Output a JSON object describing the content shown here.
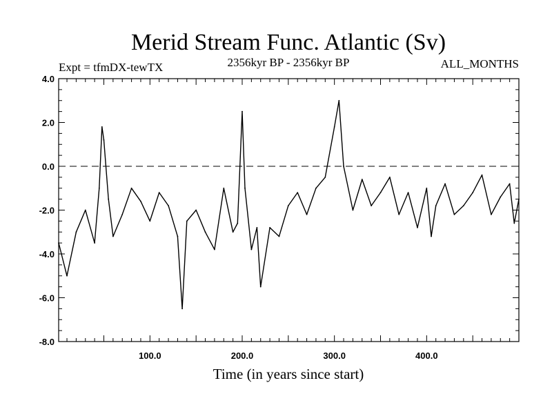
{
  "chart_data": {
    "type": "line",
    "title": "Merid Stream Func. Atlantic (Sv)",
    "subtitle_left": "Expt = tfmDX-tewTX",
    "subtitle_center": "2356kyr BP - 2356kyr BP",
    "subtitle_right": "ALL_MONTHS",
    "xlabel": "Time (in years since start)",
    "ylabel": "",
    "xlim": [
      1,
      500
    ],
    "ylim": [
      -8,
      4
    ],
    "x_ticks": [
      100,
      200,
      300,
      400
    ],
    "x_tick_labels": [
      "100.0",
      "200.0",
      "300.0",
      "400.0"
    ],
    "y_ticks": [
      -8,
      -6,
      -4,
      -2,
      0,
      2,
      4
    ],
    "y_tick_labels": [
      "-8.0",
      "-6.0",
      "-4.0",
      "-2.0",
      "0.0",
      "2.0",
      "4.0"
    ],
    "reference_line": 0,
    "series": [
      {
        "name": "Merid Stream Func. Atlantic",
        "x": [
          1,
          10,
          20,
          30,
          40,
          45,
          48,
          50,
          55,
          60,
          70,
          80,
          90,
          100,
          110,
          120,
          130,
          135,
          140,
          150,
          160,
          170,
          180,
          190,
          195,
          200,
          203,
          210,
          216,
          220,
          230,
          240,
          250,
          260,
          270,
          280,
          290,
          300,
          305,
          310,
          320,
          330,
          340,
          350,
          360,
          370,
          380,
          390,
          400,
          405,
          410,
          420,
          430,
          440,
          450,
          460,
          470,
          480,
          490,
          495,
          500
        ],
        "values": [
          -3.5,
          -5.0,
          -3.0,
          -2.0,
          -3.5,
          -1.0,
          1.8,
          1.2,
          -1.5,
          -3.2,
          -2.2,
          -1.0,
          -1.6,
          -2.5,
          -1.2,
          -1.8,
          -3.2,
          -6.5,
          -2.5,
          -2.0,
          -3.0,
          -3.8,
          -1.0,
          -3.0,
          -2.6,
          2.5,
          -1.0,
          -3.8,
          -2.8,
          -5.5,
          -2.8,
          -3.2,
          -1.8,
          -1.2,
          -2.2,
          -1.0,
          -0.5,
          1.8,
          3.0,
          0.0,
          -2.0,
          -0.6,
          -1.8,
          -1.2,
          -0.5,
          -2.2,
          -1.2,
          -2.8,
          -1.0,
          -3.2,
          -1.8,
          -0.8,
          -2.2,
          -1.8,
          -1.2,
          -0.4,
          -2.2,
          -1.4,
          -0.8,
          -2.6,
          -1.5
        ]
      }
    ]
  }
}
